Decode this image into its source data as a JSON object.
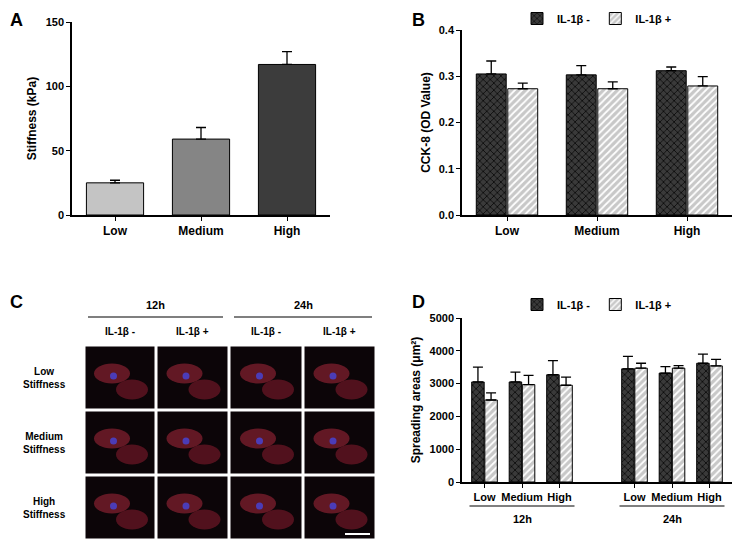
{
  "chart_data": [
    {
      "type": "bar",
      "title": "A",
      "categories": [
        "Low",
        "Medium",
        "High"
      ],
      "values": [
        25,
        59,
        117
      ],
      "errors": [
        2,
        9,
        10
      ],
      "colors": [
        "#c4c4c4",
        "#858585",
        "#3c3c3c"
      ],
      "y_label": "Stiffness (kPa)",
      "ylim": [
        0,
        150
      ],
      "yticks": [
        0,
        50,
        100,
        150
      ],
      "grid": false
    },
    {
      "type": "bar",
      "title": "B",
      "categories": [
        "Low",
        "Medium",
        "High"
      ],
      "series": [
        {
          "name": "IL-1β -",
          "color": "#3a3a3a",
          "values": [
            0.305,
            0.303,
            0.312
          ],
          "errors": [
            0.028,
            0.02,
            0.008
          ]
        },
        {
          "name": "IL-1β +",
          "color": "#c8c8c8",
          "values": [
            0.273,
            0.273,
            0.279
          ],
          "errors": [
            0.012,
            0.015,
            0.02
          ]
        }
      ],
      "y_label": "CCK-8 (OD Value)",
      "ylim": [
        0,
        0.4
      ],
      "yticks": [
        {
          "value": 0,
          "label": "0.0"
        },
        0.1,
        0.2,
        0.3,
        0.4
      ],
      "legend": "top",
      "grid": false
    },
    {
      "type": "bar",
      "title": "D",
      "categories": [
        "Low",
        "Medium",
        "High",
        null,
        "Low",
        "Medium",
        "High"
      ],
      "group_labels": [
        "12h",
        "24h"
      ],
      "series": [
        {
          "name": "IL-1β -",
          "color": "#3a3a3a",
          "values": [
            3050,
            3050,
            3270,
            null,
            3450,
            3320,
            3620
          ],
          "errors": [
            450,
            300,
            430,
            null,
            380,
            200,
            280
          ]
        },
        {
          "name": "IL-1β +",
          "color": "#c8c8c8",
          "values": [
            2500,
            2970,
            2950,
            null,
            3470,
            3470,
            3540
          ],
          "errors": [
            220,
            280,
            250,
            null,
            150,
            80,
            200
          ]
        }
      ],
      "y_label": "Spreading areas (μm²)",
      "ylim": [
        0,
        5000
      ],
      "yticks": [
        0,
        1000,
        2000,
        3000,
        4000,
        5000
      ],
      "legend": "top",
      "grid": false
    }
  ],
  "image_panel": {
    "title": "C",
    "time_groups": [
      "12h",
      "24h"
    ],
    "treatments": [
      "IL-1β -",
      "IL-1β +"
    ],
    "rows": [
      [
        "Low",
        "Stiffness"
      ],
      [
        "Medium",
        "Stiffness"
      ],
      [
        "High",
        "Stiffness"
      ]
    ]
  }
}
